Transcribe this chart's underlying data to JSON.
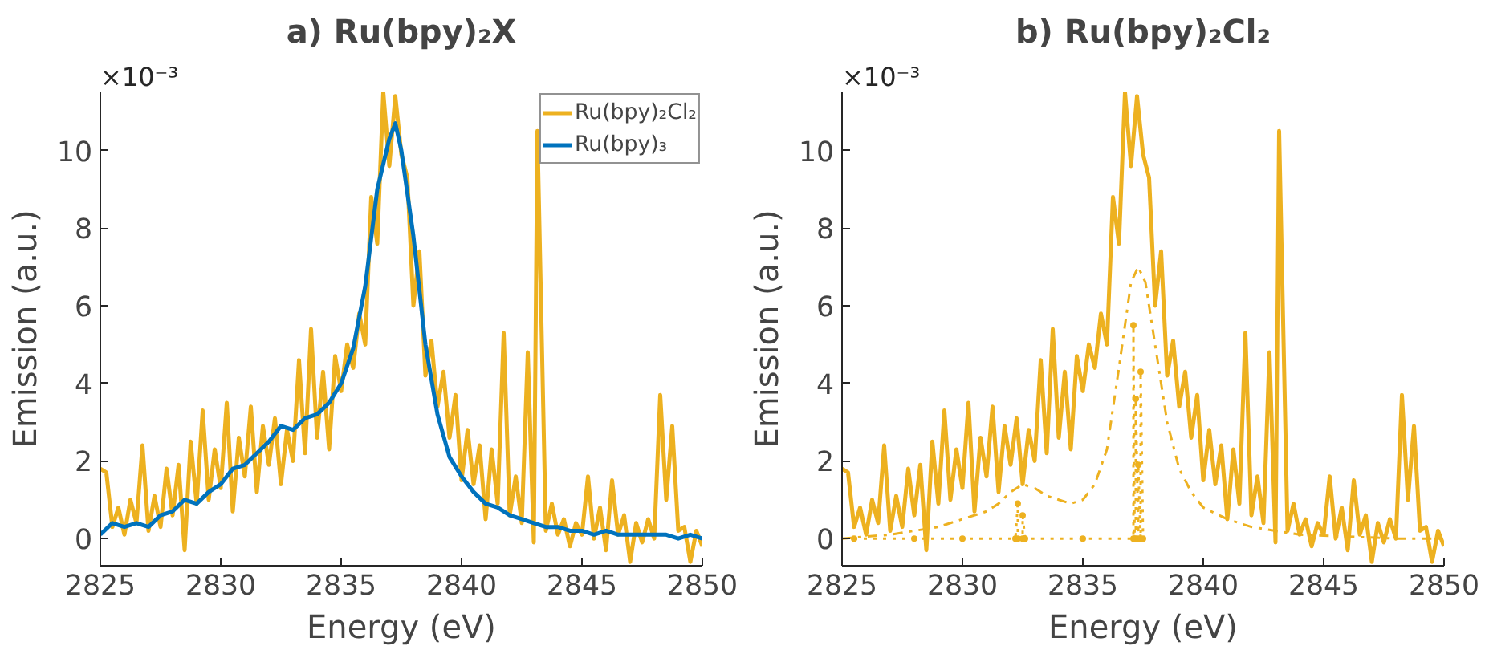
{
  "chart_data": [
    {
      "type": "line",
      "title": "a) Ru(bpy)₂X",
      "xlabel": "Energy (eV)",
      "ylabel": "Emission (a.u.)",
      "annotations": [
        "×10⁻³"
      ],
      "xlim": [
        2825,
        2850
      ],
      "xticks": [
        2825,
        2830,
        2835,
        2840,
        2845,
        2850
      ],
      "ylim": [
        -0.7,
        11.5
      ],
      "yticks": [
        0,
        2,
        4,
        6,
        8,
        10
      ],
      "grid": false,
      "legend": "top right",
      "marker": "none",
      "series": [
        {
          "name": "Ru(bpy)₂Cl₂",
          "color": "#edb120",
          "line_style": "solid",
          "x": [
            2825,
            2825.25,
            2825.5,
            2825.75,
            2826,
            2826.25,
            2826.5,
            2826.75,
            2827,
            2827.25,
            2827.5,
            2827.75,
            2828,
            2828.25,
            2828.5,
            2828.75,
            2829,
            2829.25,
            2829.5,
            2829.75,
            2830,
            2830.25,
            2830.5,
            2830.75,
            2831,
            2831.25,
            2831.5,
            2831.75,
            2832,
            2832.25,
            2832.5,
            2832.75,
            2833,
            2833.25,
            2833.5,
            2833.75,
            2834,
            2834.25,
            2834.5,
            2834.75,
            2835,
            2835.25,
            2835.5,
            2835.75,
            2836,
            2836.25,
            2836.5,
            2836.75,
            2837,
            2837.25,
            2837.5,
            2837.75,
            2838,
            2838.25,
            2838.5,
            2838.75,
            2839,
            2839.25,
            2839.5,
            2839.75,
            2840,
            2840.25,
            2840.5,
            2840.75,
            2841,
            2841.25,
            2841.5,
            2841.75,
            2842,
            2842.25,
            2842.5,
            2842.75,
            2843,
            2843.15,
            2843.5,
            2843.75,
            2844,
            2844.25,
            2844.5,
            2844.75,
            2845,
            2845.25,
            2845.5,
            2845.75,
            2846,
            2846.25,
            2846.5,
            2846.75,
            2847,
            2847.25,
            2847.5,
            2847.75,
            2848,
            2848.25,
            2848.5,
            2848.75,
            2849,
            2849.25,
            2849.5,
            2849.75,
            2850
          ],
          "values": [
            1.8,
            1.7,
            0.3,
            0.8,
            0.1,
            1.0,
            0.4,
            2.4,
            0.2,
            1.1,
            0.3,
            1.8,
            0.6,
            1.9,
            -0.3,
            2.5,
            0.9,
            3.3,
            1.0,
            2.3,
            1.3,
            3.5,
            0.7,
            2.6,
            1.6,
            3.4,
            1.2,
            2.9,
            1.9,
            3.1,
            1.4,
            2.8,
            2.0,
            4.6,
            2.2,
            5.4,
            2.6,
            4.3,
            2.3,
            4.7,
            3.8,
            5.0,
            4.4,
            5.8,
            5.0,
            8.8,
            7.6,
            11.5,
            9.6,
            11.4,
            9.9,
            9.3,
            6.0,
            7.4,
            4.2,
            5.1,
            3.4,
            4.3,
            2.6,
            3.7,
            1.5,
            2.8,
            1.4,
            2.4,
            0.5,
            2.3,
            0.9,
            5.3,
            0.6,
            1.6,
            0.4,
            4.8,
            -0.1,
            10.5,
            0.2,
            0.9,
            0.1,
            0.5,
            -0.2,
            0.4,
            0.1,
            1.6,
            0.0,
            0.8,
            -0.3,
            1.5,
            0.1,
            0.6,
            -0.6,
            0.4,
            -0.1,
            0.5,
            0.0,
            3.7,
            1.0,
            2.9,
            0.2,
            0.3,
            -0.6,
            0.2,
            -0.2
          ]
        },
        {
          "name": "Ru(bpy)₃",
          "color": "#0072bd",
          "line_style": "solid",
          "x": [
            2825,
            2825.5,
            2826,
            2826.5,
            2827,
            2827.5,
            2828,
            2828.5,
            2829,
            2829.5,
            2830,
            2830.5,
            2831,
            2831.5,
            2832,
            2832.5,
            2833,
            2833.5,
            2834,
            2834.5,
            2835,
            2835.5,
            2836,
            2836.5,
            2837,
            2837.25,
            2837.5,
            2838,
            2838.5,
            2839,
            2839.5,
            2840,
            2840.5,
            2841,
            2841.5,
            2842,
            2842.5,
            2843,
            2843.5,
            2844,
            2844.5,
            2845,
            2845.5,
            2846,
            2846.5,
            2847,
            2847.5,
            2848,
            2848.5,
            2849,
            2849.5,
            2850
          ],
          "values": [
            0.1,
            0.4,
            0.3,
            0.4,
            0.3,
            0.6,
            0.7,
            1.0,
            0.9,
            1.2,
            1.4,
            1.8,
            1.9,
            2.2,
            2.5,
            2.9,
            2.8,
            3.1,
            3.2,
            3.5,
            4.0,
            4.9,
            6.5,
            9.0,
            10.3,
            10.7,
            10.0,
            7.8,
            5.0,
            3.2,
            2.1,
            1.6,
            1.2,
            0.9,
            0.8,
            0.6,
            0.5,
            0.4,
            0.3,
            0.3,
            0.2,
            0.2,
            0.1,
            0.2,
            0.1,
            0.1,
            0.1,
            0.1,
            0.1,
            0.0,
            0.1,
            0.0
          ]
        }
      ]
    },
    {
      "type": "line",
      "title": "b) Ru(bpy)₂Cl₂",
      "xlabel": "Energy (eV)",
      "ylabel": "Emission (a.u.)",
      "annotations": [
        "×10⁻³"
      ],
      "xlim": [
        2825,
        2850
      ],
      "xticks": [
        2825,
        2830,
        2835,
        2840,
        2845,
        2850
      ],
      "ylim": [
        -0.7,
        11.5
      ],
      "yticks": [
        0,
        2,
        4,
        6,
        8,
        10
      ],
      "grid": false,
      "legend": false,
      "series": [
        {
          "color": "#edb120",
          "line_style": "solid",
          "marker": "none",
          "x": [
            2825,
            2825.25,
            2825.5,
            2825.75,
            2826,
            2826.25,
            2826.5,
            2826.75,
            2827,
            2827.25,
            2827.5,
            2827.75,
            2828,
            2828.25,
            2828.5,
            2828.75,
            2829,
            2829.25,
            2829.5,
            2829.75,
            2830,
            2830.25,
            2830.5,
            2830.75,
            2831,
            2831.25,
            2831.5,
            2831.75,
            2832,
            2832.25,
            2832.5,
            2832.75,
            2833,
            2833.25,
            2833.5,
            2833.75,
            2834,
            2834.25,
            2834.5,
            2834.75,
            2835,
            2835.25,
            2835.5,
            2835.75,
            2836,
            2836.25,
            2836.5,
            2836.75,
            2837,
            2837.25,
            2837.5,
            2837.75,
            2838,
            2838.25,
            2838.5,
            2838.75,
            2839,
            2839.25,
            2839.5,
            2839.75,
            2840,
            2840.25,
            2840.5,
            2840.75,
            2841,
            2841.25,
            2841.5,
            2841.75,
            2842,
            2842.25,
            2842.5,
            2842.75,
            2843,
            2843.15,
            2843.5,
            2843.75,
            2844,
            2844.25,
            2844.5,
            2844.75,
            2845,
            2845.25,
            2845.5,
            2845.75,
            2846,
            2846.25,
            2846.5,
            2846.75,
            2847,
            2847.25,
            2847.5,
            2847.75,
            2848,
            2848.25,
            2848.5,
            2848.75,
            2849,
            2849.25,
            2849.5,
            2849.75,
            2850
          ],
          "values": [
            1.8,
            1.7,
            0.3,
            0.8,
            0.1,
            1.0,
            0.4,
            2.4,
            0.2,
            1.1,
            0.3,
            1.8,
            0.6,
            1.9,
            -0.3,
            2.5,
            0.9,
            3.3,
            1.0,
            2.3,
            1.3,
            3.5,
            0.7,
            2.6,
            1.6,
            3.4,
            1.2,
            2.9,
            1.9,
            3.1,
            1.4,
            2.8,
            2.0,
            4.6,
            2.2,
            5.4,
            2.6,
            4.3,
            2.3,
            4.7,
            3.8,
            5.0,
            4.4,
            5.8,
            5.0,
            8.8,
            7.6,
            11.5,
            9.6,
            11.4,
            9.9,
            9.3,
            6.0,
            7.4,
            4.2,
            5.1,
            3.4,
            4.3,
            2.6,
            3.7,
            1.5,
            2.8,
            1.4,
            2.4,
            0.5,
            2.3,
            0.9,
            5.3,
            0.6,
            1.6,
            0.4,
            4.8,
            -0.1,
            10.5,
            0.2,
            0.9,
            0.1,
            0.5,
            -0.2,
            0.4,
            0.1,
            1.6,
            0.0,
            0.8,
            -0.3,
            1.5,
            0.1,
            0.6,
            -0.6,
            0.4,
            -0.1,
            0.5,
            0.0,
            3.7,
            1.0,
            2.9,
            0.2,
            0.3,
            -0.6,
            0.2,
            -0.2
          ]
        },
        {
          "color": "#edb120",
          "line_style": "dashdot",
          "marker": "none",
          "x": [
            2825,
            2826,
            2827,
            2828,
            2829,
            2830,
            2831,
            2831.5,
            2832,
            2832.5,
            2833,
            2833.5,
            2834,
            2834.5,
            2835,
            2835.5,
            2836,
            2836.5,
            2837,
            2837.3,
            2837.6,
            2838,
            2838.5,
            2839,
            2839.5,
            2840,
            2841,
            2842,
            2843,
            2844,
            2846,
            2848,
            2850
          ],
          "values": [
            0.0,
            0.05,
            0.1,
            0.2,
            0.3,
            0.5,
            0.7,
            0.9,
            1.2,
            1.4,
            1.3,
            1.1,
            1.0,
            0.9,
            1.0,
            1.4,
            2.3,
            4.4,
            6.6,
            7.0,
            6.6,
            5.0,
            3.0,
            1.8,
            1.2,
            0.8,
            0.5,
            0.3,
            0.2,
            0.1,
            0.05,
            0.0,
            0.0
          ]
        },
        {
          "color": "#edb120",
          "line_style": "dotted",
          "marker": "circle",
          "x": [
            2825.5,
            2828,
            2830,
            2832.2,
            2832.3,
            2832.3,
            2832.5,
            2832.5,
            2832.6,
            2835,
            2837.1,
            2837.1,
            2837.15,
            2837.2,
            2837.2,
            2837.3,
            2837.3,
            2837.4,
            2837.4,
            2837.5
          ],
          "values": [
            0,
            0,
            0,
            0,
            0.9,
            0,
            0,
            0.6,
            0,
            0,
            0,
            5.5,
            0,
            0,
            3.6,
            0,
            1.9,
            0,
            4.3,
            0
          ]
        }
      ]
    }
  ]
}
